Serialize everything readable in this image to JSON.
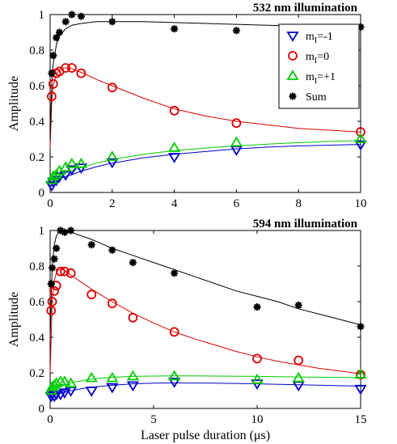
{
  "chart_data": [
    {
      "type": "scatter",
      "title": "532 nm illumination",
      "xlabel": "",
      "ylabel": "Amplitude",
      "xlim": [
        0,
        10
      ],
      "ylim": [
        0,
        1
      ],
      "xticks": [
        0,
        2,
        4,
        6,
        8,
        10
      ],
      "yticks": [
        0,
        0.2,
        0.4,
        0.6,
        0.8,
        1
      ],
      "legend_position": "top-right",
      "legend_sub_symbol": "I",
      "series": [
        {
          "name": "m=-1",
          "legend_main": "m",
          "legend_rest": "=-1",
          "marker": "triangle-down",
          "color": "#0000cc",
          "x": [
            0.05,
            0.1,
            0.2,
            0.3,
            0.5,
            0.7,
            1,
            2,
            4,
            6,
            10
          ],
          "y": [
            0.04,
            0.06,
            0.07,
            0.09,
            0.1,
            0.13,
            0.14,
            0.17,
            0.2,
            0.24,
            0.27
          ],
          "fit_x": [
            0,
            0.05,
            0.1,
            0.2,
            0.3,
            0.5,
            0.7,
            1,
            1.5,
            2,
            3,
            4,
            5,
            6,
            7,
            8,
            9,
            10
          ],
          "fit_y": [
            0.03,
            0.04,
            0.05,
            0.065,
            0.075,
            0.09,
            0.1,
            0.12,
            0.145,
            0.165,
            0.195,
            0.215,
            0.23,
            0.245,
            0.255,
            0.262,
            0.266,
            0.27
          ]
        },
        {
          "name": "m=0",
          "legend_main": "m",
          "legend_rest": "=0",
          "marker": "circle",
          "color": "#dd0000",
          "x": [
            0.05,
            0.1,
            0.2,
            0.3,
            0.5,
            0.7,
            1,
            2,
            4,
            6,
            10
          ],
          "y": [
            0.54,
            0.61,
            0.67,
            0.68,
            0.7,
            0.7,
            0.67,
            0.59,
            0.46,
            0.39,
            0.34
          ],
          "fit_x": [
            0,
            0.05,
            0.1,
            0.2,
            0.3,
            0.4,
            0.5,
            0.7,
            1,
            1.5,
            2,
            3,
            4,
            5,
            6,
            7,
            8,
            9,
            10
          ],
          "fit_y": [
            0.25,
            0.5,
            0.6,
            0.665,
            0.69,
            0.7,
            0.7,
            0.695,
            0.675,
            0.635,
            0.6,
            0.53,
            0.47,
            0.43,
            0.4,
            0.38,
            0.36,
            0.35,
            0.34
          ]
        },
        {
          "name": "m=+1",
          "legend_main": "m",
          "legend_rest": "=+1",
          "marker": "triangle-up",
          "color": "#00cc00",
          "x": [
            0.05,
            0.1,
            0.2,
            0.3,
            0.5,
            0.7,
            1,
            2,
            4,
            6,
            10
          ],
          "y": [
            0.07,
            0.09,
            0.1,
            0.12,
            0.14,
            0.16,
            0.16,
            0.2,
            0.25,
            0.28,
            0.3
          ],
          "fit_x": [
            0,
            0.05,
            0.1,
            0.2,
            0.3,
            0.5,
            0.7,
            1,
            1.5,
            2,
            3,
            4,
            5,
            6,
            7,
            8,
            9,
            10
          ],
          "fit_y": [
            0.05,
            0.06,
            0.07,
            0.085,
            0.095,
            0.11,
            0.12,
            0.14,
            0.165,
            0.185,
            0.215,
            0.235,
            0.25,
            0.262,
            0.272,
            0.28,
            0.287,
            0.292
          ]
        },
        {
          "name": "Sum",
          "legend_main": "Sum",
          "legend_rest": "",
          "marker": "asterisk",
          "color": "#000000",
          "x": [
            0.05,
            0.1,
            0.2,
            0.3,
            0.5,
            0.7,
            1,
            2,
            4,
            6,
            10
          ],
          "y": [
            0.67,
            0.77,
            0.87,
            0.9,
            0.96,
            1.0,
            0.99,
            0.96,
            0.92,
            0.91,
            0.93
          ],
          "fit_x": [
            0,
            0.05,
            0.1,
            0.2,
            0.3,
            0.5,
            0.7,
            1,
            1.5,
            2,
            3,
            4,
            5,
            6,
            7,
            8,
            9,
            10
          ],
          "fit_y": [
            0.3,
            0.6,
            0.72,
            0.83,
            0.88,
            0.92,
            0.94,
            0.95,
            0.96,
            0.96,
            0.96,
            0.955,
            0.95,
            0.945,
            0.94,
            0.935,
            0.93,
            0.93
          ]
        }
      ]
    },
    {
      "type": "scatter",
      "title": "594 nm illumination",
      "xlabel": "Laser pulse duration (μs)",
      "ylabel": "Amplitude",
      "xlim": [
        0,
        15
      ],
      "ylim": [
        0,
        1
      ],
      "xticks": [
        0,
        5,
        10,
        15
      ],
      "yticks": [
        0,
        0.2,
        0.4,
        0.6,
        0.8,
        1
      ],
      "series": [
        {
          "name": "m=-1",
          "marker": "triangle-down",
          "color": "#0000cc",
          "x": [
            0.05,
            0.1,
            0.2,
            0.3,
            0.5,
            0.7,
            1,
            2,
            3,
            4,
            6,
            10,
            12,
            15
          ],
          "y": [
            0.07,
            0.08,
            0.07,
            0.08,
            0.08,
            0.09,
            0.1,
            0.1,
            0.12,
            0.13,
            0.15,
            0.14,
            0.13,
            0.11
          ],
          "fit_x": [
            0,
            0.2,
            0.5,
            1,
            2,
            3,
            4,
            5,
            6,
            8,
            10,
            12,
            15
          ],
          "fit_y": [
            0.07,
            0.075,
            0.085,
            0.1,
            0.12,
            0.13,
            0.138,
            0.142,
            0.143,
            0.142,
            0.138,
            0.133,
            0.125
          ]
        },
        {
          "name": "m=0",
          "marker": "circle",
          "color": "#dd0000",
          "x": [
            0.05,
            0.1,
            0.2,
            0.3,
            0.5,
            0.7,
            1,
            2,
            3,
            4,
            6,
            10,
            12,
            15
          ],
          "y": [
            0.55,
            0.6,
            0.66,
            0.69,
            0.77,
            0.77,
            0.76,
            0.64,
            0.59,
            0.51,
            0.43,
            0.28,
            0.27,
            0.19
          ],
          "fit_x": [
            0,
            0.1,
            0.2,
            0.3,
            0.4,
            0.6,
            0.8,
            1,
            1.5,
            2,
            3,
            4,
            5,
            6,
            7,
            8,
            9,
            10,
            11,
            12,
            13,
            14,
            15
          ],
          "fit_y": [
            0.2,
            0.6,
            0.72,
            0.76,
            0.78,
            0.78,
            0.77,
            0.75,
            0.71,
            0.67,
            0.6,
            0.535,
            0.48,
            0.43,
            0.39,
            0.355,
            0.32,
            0.29,
            0.265,
            0.245,
            0.225,
            0.21,
            0.195
          ]
        },
        {
          "name": "m=+1",
          "marker": "triangle-up",
          "color": "#00cc00",
          "x": [
            0.05,
            0.1,
            0.2,
            0.3,
            0.5,
            0.7,
            1,
            2,
            3,
            4,
            6,
            10,
            12,
            15
          ],
          "y": [
            0.1,
            0.12,
            0.13,
            0.14,
            0.15,
            0.15,
            0.14,
            0.17,
            0.17,
            0.18,
            0.18,
            0.16,
            0.17,
            0.19
          ],
          "fit_x": [
            0,
            0.2,
            0.5,
            1,
            2,
            3,
            4,
            5,
            6,
            8,
            10,
            12,
            15
          ],
          "fit_y": [
            0.1,
            0.11,
            0.125,
            0.145,
            0.165,
            0.175,
            0.18,
            0.182,
            0.183,
            0.182,
            0.18,
            0.177,
            0.173
          ]
        },
        {
          "name": "Sum",
          "marker": "asterisk",
          "color": "#000000",
          "x": [
            0.05,
            0.1,
            0.2,
            0.3,
            0.5,
            0.7,
            1,
            2,
            3,
            4,
            6,
            10,
            12,
            15
          ],
          "y": [
            0.7,
            0.79,
            0.84,
            0.9,
            1.0,
            0.99,
            1.0,
            0.92,
            0.89,
            0.82,
            0.76,
            0.57,
            0.58,
            0.46
          ],
          "fit_x": [
            0,
            0.1,
            0.2,
            0.3,
            0.5,
            0.7,
            1,
            2,
            3,
            4,
            5,
            6,
            7,
            8,
            9,
            10,
            11,
            12,
            13,
            14,
            15
          ],
          "fit_y": [
            0.4,
            0.8,
            0.92,
            0.97,
            1.0,
            1.0,
            0.99,
            0.95,
            0.9,
            0.86,
            0.82,
            0.78,
            0.74,
            0.7,
            0.66,
            0.63,
            0.6,
            0.56,
            0.53,
            0.5,
            0.47
          ]
        }
      ]
    }
  ]
}
